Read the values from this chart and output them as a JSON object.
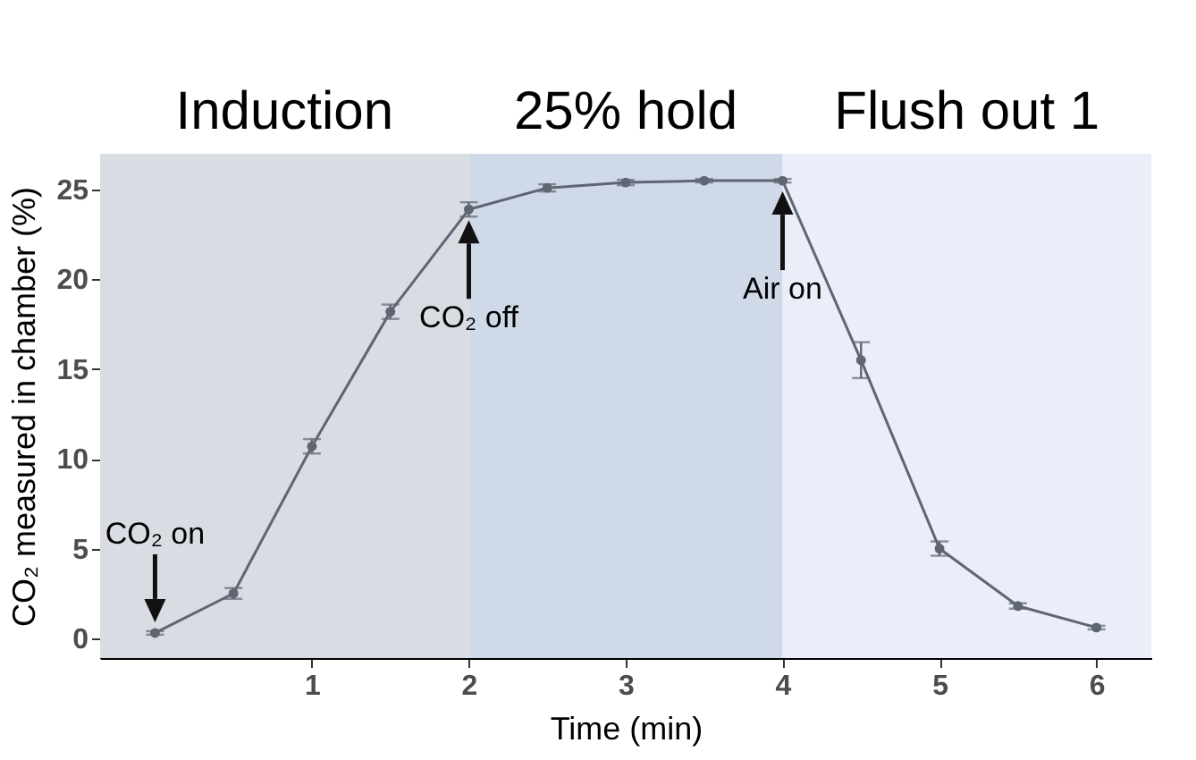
{
  "chart_data": {
    "type": "line",
    "xlabel": "Time (min)",
    "ylabel": "CO₂ measured in chamber (%)",
    "x": [
      0,
      0.5,
      1,
      1.5,
      2,
      2.5,
      3,
      3.5,
      4,
      4.5,
      5,
      5.5,
      6
    ],
    "series": [
      {
        "color": "#5f6572",
        "values": [
          0.3,
          2.5,
          10.7,
          18.2,
          23.9,
          25.1,
          25.4,
          25.5,
          25.5,
          15.5,
          5.0,
          1.8,
          0.6
        ],
        "errors": [
          0.1,
          0.3,
          0.4,
          0.4,
          0.4,
          0.2,
          0.15,
          0.1,
          0.1,
          1.0,
          0.4,
          0.15,
          0.1
        ]
      }
    ],
    "xlim": [
      -0.35,
      6.35
    ],
    "ylim": [
      -1.1,
      27
    ],
    "xticks": [
      1,
      2,
      3,
      4,
      5,
      6
    ],
    "yticks": [
      0,
      5,
      10,
      15,
      20,
      25
    ],
    "bands": [
      {
        "axis": "x",
        "from": -0.35,
        "to": 2,
        "label": "Induction",
        "color": "#d9dce3"
      },
      {
        "axis": "x",
        "from": 2,
        "to": 4,
        "label": "25% hold",
        "color": "#cfd9e7"
      },
      {
        "axis": "x",
        "from": 4,
        "to": 6.35,
        "label": "Flush out 1",
        "color": "#e9eef8"
      }
    ],
    "annotations": [
      {
        "text": "CO₂ on",
        "x": 0,
        "y": 0.3
      },
      {
        "text": "CO₂ off",
        "x": 2,
        "y": 23.9
      },
      {
        "text": "Air on",
        "x": 4,
        "y": 25.5
      }
    ],
    "marker": "circle",
    "line_style": "solid",
    "grid": false
  }
}
